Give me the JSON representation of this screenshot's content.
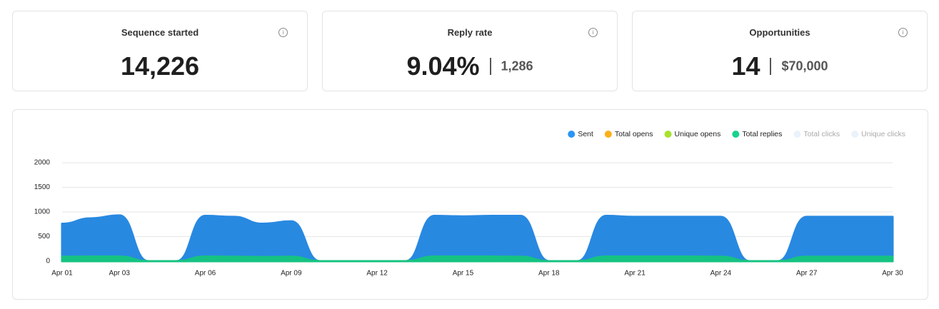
{
  "cards": [
    {
      "title": "Sequence started",
      "value": "14,226"
    },
    {
      "title": "Reply rate",
      "value": "9.04%",
      "secondary": "1,286"
    },
    {
      "title": "Opportunities",
      "value": "14",
      "secondary": "$70,000"
    }
  ],
  "chart_data": {
    "type": "area",
    "categories": [
      "Apr 01",
      null,
      "Apr 03",
      null,
      null,
      "Apr 06",
      null,
      null,
      "Apr 09",
      null,
      null,
      "Apr 12",
      null,
      null,
      "Apr 15",
      null,
      null,
      "Apr 18",
      null,
      null,
      "Apr 21",
      null,
      null,
      "Apr 24",
      null,
      null,
      "Apr 27",
      null,
      null,
      "Apr 30"
    ],
    "series": [
      {
        "name": "Sent",
        "color": "#2b95f5",
        "values": [
          760,
          870,
          930,
          0,
          0,
          920,
          900,
          760,
          810,
          0,
          0,
          0,
          0,
          920,
          910,
          920,
          920,
          0,
          0,
          920,
          900,
          900,
          900,
          900,
          0,
          0,
          900,
          900,
          900,
          900
        ]
      },
      {
        "name": "Total opens",
        "color": "#fbb017",
        "values": [
          25,
          25,
          25,
          0,
          0,
          25,
          25,
          25,
          25,
          0,
          0,
          0,
          0,
          25,
          25,
          25,
          25,
          0,
          0,
          25,
          25,
          25,
          25,
          25,
          0,
          0,
          25,
          25,
          25,
          25
        ]
      },
      {
        "name": "Unique opens",
        "color": "#a6e22e",
        "values": [
          45,
          45,
          45,
          0,
          0,
          45,
          45,
          45,
          45,
          0,
          0,
          0,
          0,
          45,
          45,
          45,
          45,
          0,
          0,
          45,
          45,
          45,
          45,
          45,
          0,
          0,
          45,
          45,
          45,
          45
        ]
      },
      {
        "name": "Total replies",
        "color": "#17d38d",
        "values": [
          90,
          95,
          95,
          0,
          0,
          95,
          90,
          85,
          90,
          0,
          0,
          0,
          0,
          95,
          95,
          95,
          90,
          0,
          0,
          95,
          95,
          95,
          95,
          90,
          0,
          0,
          90,
          90,
          90,
          90
        ]
      },
      {
        "name": "Total clicks",
        "color": "#eaf2fb",
        "hidden": true
      },
      {
        "name": "Unique clicks",
        "color": "#eaf2fb",
        "hidden": true
      }
    ],
    "ylim": [
      0,
      2000
    ],
    "yticks": [
      0,
      500,
      1000,
      1500,
      2000
    ],
    "grid": true,
    "legend": "top-right"
  }
}
